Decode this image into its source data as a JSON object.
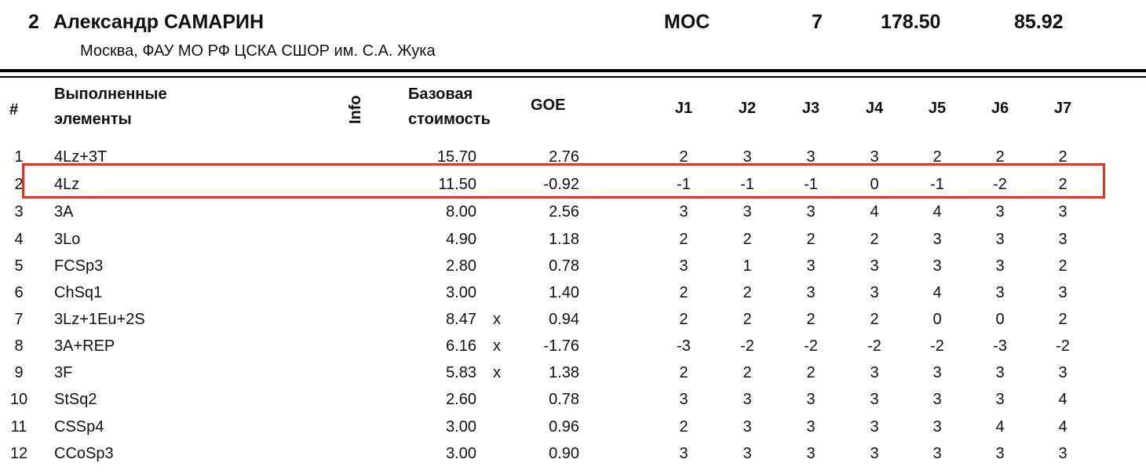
{
  "athlete": {
    "rank": "2",
    "name": "Александр САМАРИН",
    "nation": "MOC",
    "start_no": "7",
    "total_segment_score": "178.50",
    "total_element_score": "85.92",
    "club": "Москва, ФАУ МО РФ ЦСКА СШОР им. С.А. Жука"
  },
  "headers": {
    "num": "#",
    "elements_line1": "Выполненные",
    "elements_line2": "элементы",
    "info": "Info",
    "base_line1": "Базовая",
    "base_line2": "стоимость",
    "goe": "GOE",
    "judges": [
      "J1",
      "J2",
      "J3",
      "J4",
      "J5",
      "J6",
      "J7"
    ]
  },
  "elements": [
    {
      "num": "1",
      "element": "4Lz+3T",
      "base": "15.70",
      "info": "",
      "goe": "2.76",
      "judges": [
        "2",
        "3",
        "3",
        "3",
        "2",
        "2",
        "2"
      ]
    },
    {
      "num": "2",
      "element": "4Lz",
      "base": "11.50",
      "info": "",
      "goe": "-0.92",
      "judges": [
        "-1",
        "-1",
        "-1",
        "0",
        "-1",
        "-2",
        "2"
      ]
    },
    {
      "num": "3",
      "element": "3A",
      "base": "8.00",
      "info": "",
      "goe": "2.56",
      "judges": [
        "3",
        "3",
        "3",
        "4",
        "4",
        "3",
        "3"
      ]
    },
    {
      "num": "4",
      "element": "3Lo",
      "base": "4.90",
      "info": "",
      "goe": "1.18",
      "judges": [
        "2",
        "2",
        "2",
        "2",
        "3",
        "3",
        "3"
      ]
    },
    {
      "num": "5",
      "element": "FCSp3",
      "base": "2.80",
      "info": "",
      "goe": "0.78",
      "judges": [
        "3",
        "1",
        "3",
        "3",
        "3",
        "3",
        "2"
      ]
    },
    {
      "num": "6",
      "element": "ChSq1",
      "base": "3.00",
      "info": "",
      "goe": "1.40",
      "judges": [
        "2",
        "2",
        "3",
        "3",
        "4",
        "3",
        "3"
      ]
    },
    {
      "num": "7",
      "element": "3Lz+1Eu+2S",
      "base": "8.47",
      "info": "x",
      "goe": "0.94",
      "judges": [
        "2",
        "2",
        "2",
        "2",
        "0",
        "0",
        "2"
      ]
    },
    {
      "num": "8",
      "element": "3A+REP",
      "base": "6.16",
      "info": "x",
      "goe": "-1.76",
      "judges": [
        "-3",
        "-2",
        "-2",
        "-2",
        "-2",
        "-3",
        "-2"
      ]
    },
    {
      "num": "9",
      "element": "3F",
      "base": "5.83",
      "info": "x",
      "goe": "1.38",
      "judges": [
        "2",
        "2",
        "2",
        "3",
        "3",
        "3",
        "3"
      ]
    },
    {
      "num": "10",
      "element": "StSq2",
      "base": "2.60",
      "info": "",
      "goe": "0.78",
      "judges": [
        "3",
        "3",
        "3",
        "3",
        "3",
        "3",
        "4"
      ]
    },
    {
      "num": "11",
      "element": "CSSp4",
      "base": "3.00",
      "info": "",
      "goe": "0.96",
      "judges": [
        "2",
        "3",
        "3",
        "3",
        "3",
        "4",
        "4"
      ]
    },
    {
      "num": "12",
      "element": "CCoSp3",
      "base": "3.00",
      "info": "",
      "goe": "0.90",
      "judges": [
        "3",
        "3",
        "3",
        "3",
        "3",
        "3",
        "3"
      ]
    }
  ],
  "highlight": {
    "row_index": 1,
    "color": "#e5331a"
  }
}
